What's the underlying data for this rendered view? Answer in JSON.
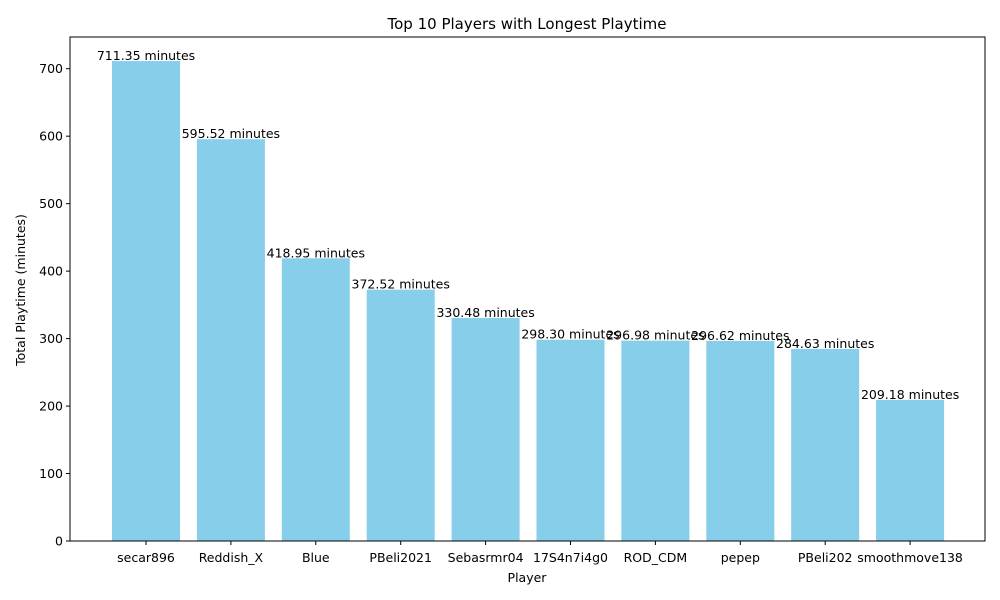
{
  "chart_data": {
    "type": "bar",
    "title": "Top 10 Players with Longest Playtime",
    "xlabel": "Player",
    "ylabel": "Total Playtime (minutes)",
    "categories": [
      "secar896",
      "Reddish_X",
      "Blue",
      "PBeli2021",
      "Sebasrmr04",
      "17S4n7i4g0",
      "ROD_CDM",
      "pepep",
      "PBeli202",
      "smoothmove138"
    ],
    "values": [
      711.35,
      595.52,
      418.95,
      372.52,
      330.48,
      298.3,
      296.98,
      296.62,
      284.63,
      209.18
    ],
    "data_labels": [
      "711.35 minutes",
      "595.52 minutes",
      "418.95 minutes",
      "372.52 minutes",
      "330.48 minutes",
      "298.30 minutes",
      "296.98 minutes",
      "296.62 minutes",
      "284.63 minutes",
      "209.18 minutes"
    ],
    "yticks": [
      0,
      100,
      200,
      300,
      400,
      500,
      600,
      700
    ],
    "ylim": [
      0,
      747
    ],
    "bar_color": "#87CEEB",
    "grid": false
  }
}
